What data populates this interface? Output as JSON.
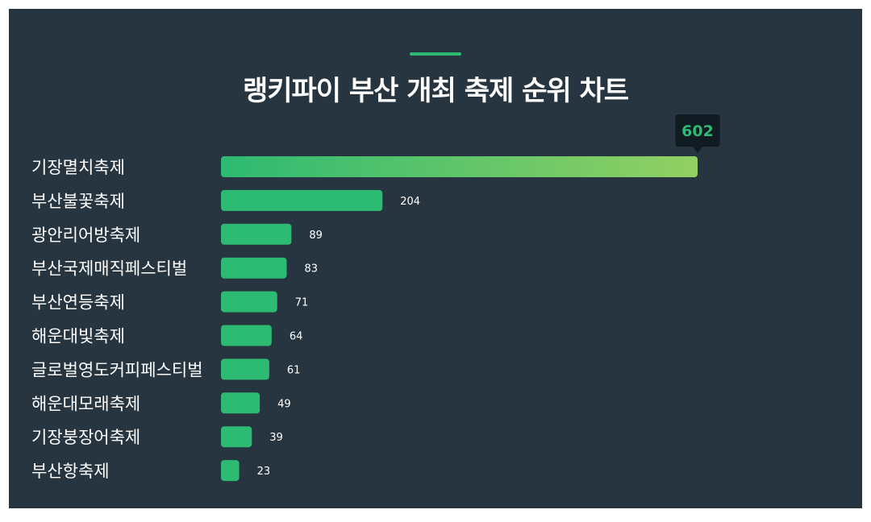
{
  "title": "랭키파이 부산 개최 축제 순위 차트",
  "colors": {
    "background": "#263540",
    "bar": "#2dba72",
    "bar_gradient_end": "#92d062",
    "accent": "#2dba72",
    "tooltip_bg": "#101b22",
    "text": "#ffffff"
  },
  "chart_data": {
    "type": "bar",
    "orientation": "horizontal",
    "title": "랭키파이 부산 개최 축제 순위 차트",
    "categories": [
      "기장멸치축제",
      "부산불꽃축제",
      "광안리어방축제",
      "부산국제매직페스티벌",
      "부산연등축제",
      "해운대빛축제",
      "글로벌영도커피페스티벌",
      "해운대모래축제",
      "기장붕장어축제",
      "부산항축제"
    ],
    "values": [
      602,
      204,
      89,
      83,
      71,
      64,
      61,
      49,
      39,
      23
    ],
    "xlim": [
      0,
      602
    ],
    "grid": false,
    "legend": "none",
    "highlight": "callout above the top bar"
  }
}
